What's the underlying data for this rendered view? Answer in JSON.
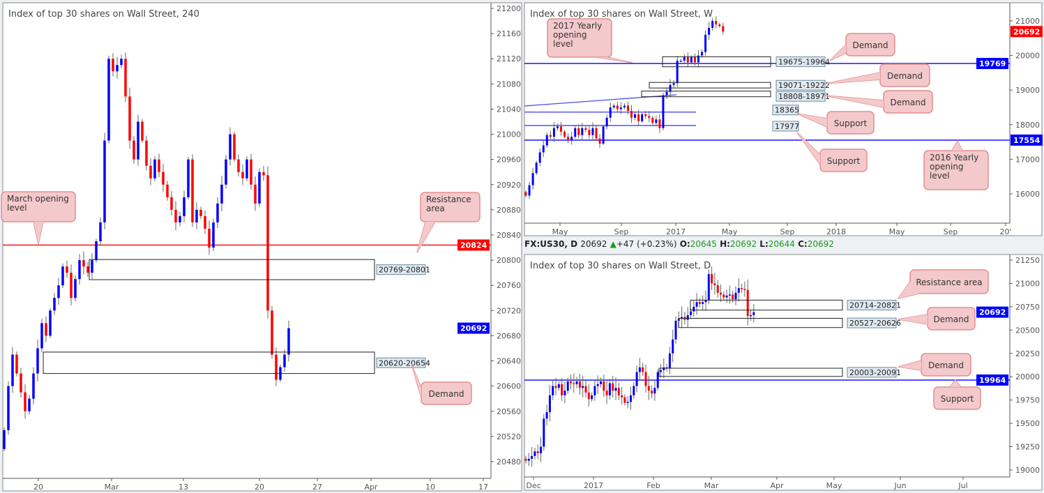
{
  "header": {
    "symbol": "FX:US30, D",
    "price": "20692",
    "change": "+47 (+0.23%)",
    "o_label": "O:",
    "o": "20645",
    "h_label": "H:",
    "h": "20692",
    "l_label": "L:",
    "l": "20644",
    "c_label": "C:",
    "c": "20692",
    "up_color": "#1a9a1a"
  },
  "colors": {
    "up": "#0000ff",
    "down": "#ff0000",
    "callout_fill": "#f4c9cb",
    "callout_border": "#e38e8e"
  },
  "chart_data": [
    {
      "type": "candlestick",
      "title": "Index of top 30 shares on Wall Street, 240",
      "ylim": [
        20440,
        21210
      ],
      "yticks": [
        21200,
        21160,
        21120,
        21080,
        21040,
        21000,
        20960,
        20920,
        20880,
        20840,
        20800,
        20760,
        20720,
        20680,
        20640,
        20600,
        20560,
        20520,
        20480
      ],
      "xticks": [
        "20",
        "Mar",
        "13",
        "20",
        "27",
        "Apr",
        "10",
        "17"
      ],
      "first_open": 20500,
      "closes": [
        20530,
        20600,
        20650,
        20620,
        20590,
        20560,
        20580,
        20620,
        20660,
        20700,
        20680,
        20720,
        20740,
        20760,
        20790,
        20780,
        20740,
        20770,
        20800,
        20790,
        20780,
        20800,
        20830,
        20860,
        20990,
        21120,
        21100,
        21110,
        21120,
        21060,
        20990,
        20960,
        21020,
        20990,
        20950,
        20930,
        20960,
        20940,
        20920,
        20900,
        20880,
        20860,
        20870,
        20900,
        20960,
        20860,
        20880,
        20870,
        20850,
        20820,
        20860,
        20890,
        20920,
        20960,
        21000,
        20960,
        20940,
        20930,
        20960,
        20920,
        20890,
        20940,
        20935,
        20720,
        20650,
        20610,
        20630,
        20650,
        20692
      ],
      "price_labels": [
        {
          "value": 20824,
          "text": "20824",
          "color": "#ff0000"
        },
        {
          "value": 20692,
          "text": "20692",
          "color": "#0000ff"
        }
      ],
      "lines": [
        {
          "value": 20824,
          "color": "#ff0000"
        }
      ],
      "zones": [
        {
          "low": 20769,
          "high": 20801,
          "label": "20769-20801"
        },
        {
          "low": 20620,
          "high": 20654,
          "label": "20620-20654"
        }
      ],
      "callouts": [
        {
          "lines": [
            "March opening",
            "level"
          ]
        },
        {
          "lines": [
            "Resistance",
            "area"
          ]
        },
        {
          "lines": [
            "Demand"
          ]
        }
      ]
    },
    {
      "type": "candlestick",
      "title": "Index of top 30 shares on Wall Street, W",
      "ylim": [
        15500,
        21300
      ],
      "yticks": [
        21000,
        20000,
        19000,
        18000,
        17000,
        16000
      ],
      "xticks": [
        "May",
        "Sep",
        "2017",
        "May",
        "Sep",
        "2018",
        "May",
        "Sep",
        "20'"
      ],
      "first_open": 16050,
      "closes": [
        15950,
        16250,
        16600,
        16900,
        17200,
        17400,
        17700,
        17650,
        17900,
        17950,
        17800,
        17650,
        17550,
        17650,
        17900,
        17700,
        17900,
        17850,
        17700,
        17900,
        17600,
        17450,
        17950,
        18200,
        18500,
        18550,
        18450,
        18500,
        18550,
        18400,
        18200,
        18300,
        18100,
        18300,
        18250,
        18200,
        18050,
        18150,
        17900,
        18850,
        18950,
        19150,
        19200,
        19850,
        19850,
        19950,
        19800,
        19950,
        19800,
        20000,
        20100,
        20600,
        20800,
        21000,
        20900,
        20850,
        20692
      ],
      "price_labels": [
        {
          "value": 20692,
          "text": "20692",
          "color": "#ff0000"
        },
        {
          "value": 19769,
          "text": "19769",
          "color": "#0000ff"
        },
        {
          "value": 17554,
          "text": "17554",
          "color": "#0000ff"
        }
      ],
      "lines": [
        {
          "value": 19769,
          "color": "#0000ff"
        },
        {
          "value": 17554,
          "color": "#0000ff"
        }
      ],
      "support_lines": [
        {
          "value": 18365,
          "label": "18365"
        },
        {
          "value": 17977,
          "label": "17977"
        }
      ],
      "zones": [
        {
          "low": 19675,
          "high": 19964,
          "label": "19675-19964"
        },
        {
          "low": 19071,
          "high": 19222,
          "label": "19071-19222"
        },
        {
          "low": 18808,
          "high": 18971,
          "label": "18808-18971"
        }
      ],
      "callouts": [
        {
          "lines": [
            "2017 Yearly",
            "opening",
            "level"
          ]
        },
        {
          "lines": [
            "Demand"
          ]
        },
        {
          "lines": [
            "Demand"
          ]
        },
        {
          "lines": [
            "Demand"
          ]
        },
        {
          "lines": [
            "Support"
          ]
        },
        {
          "lines": [
            "Support"
          ]
        },
        {
          "lines": [
            "2016 Yearly",
            "opening",
            "level"
          ]
        }
      ]
    },
    {
      "type": "candlestick",
      "title": "Index of top 30 shares on Wall Street, D",
      "ylim": [
        18950,
        21300
      ],
      "yticks": [
        21250,
        21000,
        20750,
        20500,
        20250,
        20000,
        19750,
        19500,
        19250,
        19000
      ],
      "xticks": [
        "Dec",
        "2017",
        "Feb",
        "Mar",
        "Apr",
        "May",
        "Jun",
        "Jul"
      ],
      "first_open": 19120,
      "closes": [
        19100,
        19120,
        19150,
        19200,
        19180,
        19250,
        19550,
        19620,
        19800,
        19900,
        19880,
        19920,
        19800,
        19850,
        19950,
        19930,
        19920,
        19950,
        19880,
        19900,
        19830,
        19760,
        19800,
        19900,
        19920,
        19950,
        19850,
        19800,
        19930,
        19850,
        19880,
        19800,
        19780,
        19720,
        19730,
        19800,
        19900,
        20050,
        20100,
        20050,
        19900,
        19850,
        19820,
        19880,
        20050,
        20070,
        20100,
        20090,
        20250,
        20400,
        20600,
        20620,
        20640,
        20610,
        20660,
        20700,
        20750,
        20800,
        20780,
        20800,
        20820,
        21100,
        21000,
        20980,
        20900,
        20880,
        20850,
        20870,
        20880,
        20830,
        20900,
        20950,
        20940,
        20930,
        20650,
        20660,
        20692
      ],
      "price_labels": [
        {
          "value": 20692,
          "text": "20692",
          "color": "#0000ff"
        },
        {
          "value": 19964,
          "text": "19964",
          "color": "#0000ff"
        }
      ],
      "lines": [
        {
          "value": 19964,
          "color": "#0000ff"
        }
      ],
      "zones": [
        {
          "low": 20714,
          "high": 20821,
          "label": "20714-20821"
        },
        {
          "low": 20527,
          "high": 20626,
          "label": "20527-20626"
        },
        {
          "low": 20003,
          "high": 20091,
          "label": "20003-20091"
        }
      ],
      "callouts": [
        {
          "lines": [
            "Resistance area"
          ]
        },
        {
          "lines": [
            "Demand"
          ]
        },
        {
          "lines": [
            "Demand"
          ]
        },
        {
          "lines": [
            "Support"
          ]
        }
      ]
    }
  ]
}
